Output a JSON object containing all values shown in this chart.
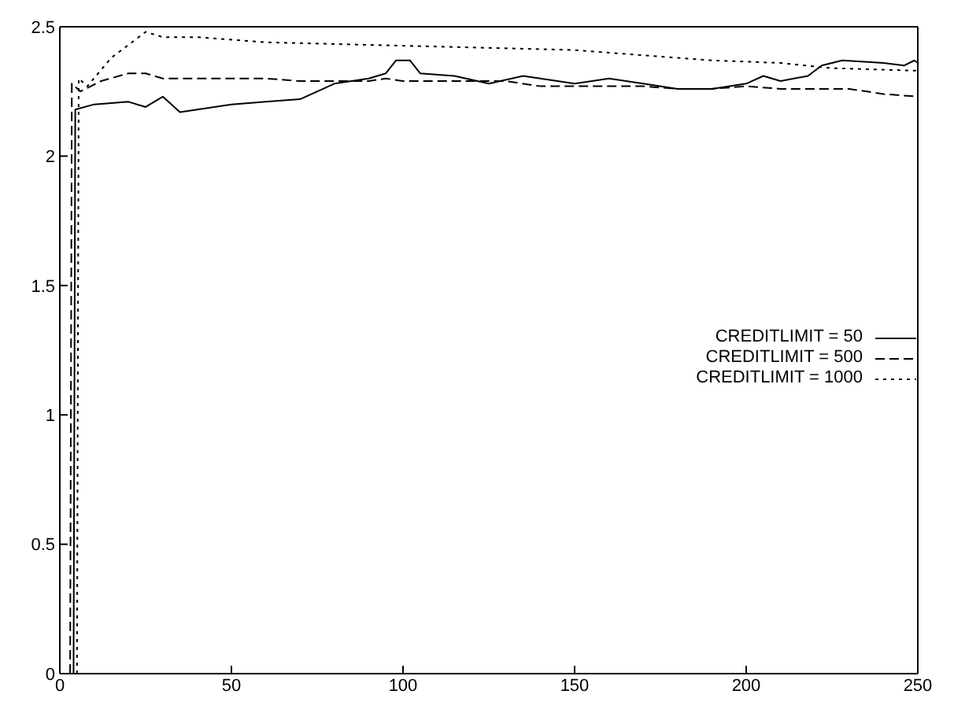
{
  "chart_data": {
    "type": "line",
    "xlim": [
      0,
      250
    ],
    "xticks": [
      0,
      50,
      100,
      150,
      200,
      250
    ],
    "ylim": [
      0,
      2.5
    ],
    "yticks": [
      0,
      0.5,
      1,
      1.5,
      2,
      2.5
    ],
    "grid": false,
    "legend": "right",
    "marker": "none",
    "series": [
      {
        "name": "CREDITLIMIT = 50",
        "color": "#000000",
        "line_style": "solid",
        "x": [
          4,
          4.5,
          10,
          20,
          25,
          30,
          35,
          40,
          50,
          60,
          70,
          80,
          90,
          95,
          98,
          102,
          105,
          115,
          125,
          135,
          140,
          150,
          160,
          170,
          180,
          190,
          200,
          205,
          210,
          218,
          222,
          228,
          240,
          246,
          249,
          250
        ],
        "values": [
          0,
          2.18,
          2.2,
          2.21,
          2.19,
          2.23,
          2.17,
          2.18,
          2.2,
          2.21,
          2.22,
          2.28,
          2.3,
          2.32,
          2.37,
          2.37,
          2.32,
          2.31,
          2.28,
          2.31,
          2.3,
          2.28,
          2.3,
          2.28,
          2.26,
          2.26,
          2.28,
          2.31,
          2.29,
          2.31,
          2.35,
          2.37,
          2.36,
          2.35,
          2.37,
          2.36
        ]
      },
      {
        "name": "CREDITLIMIT = 500",
        "color": "#000000",
        "line_style": "dashed",
        "x": [
          3,
          3.5,
          6,
          12,
          20,
          25,
          30,
          45,
          60,
          70,
          90,
          95,
          100,
          130,
          140,
          170,
          180,
          190,
          200,
          210,
          230,
          240,
          250
        ],
        "values": [
          0,
          2.28,
          2.25,
          2.29,
          2.32,
          2.32,
          2.3,
          2.3,
          2.3,
          2.29,
          2.29,
          2.3,
          2.29,
          2.29,
          2.27,
          2.27,
          2.26,
          2.26,
          2.27,
          2.26,
          2.26,
          2.24,
          2.23
        ]
      },
      {
        "name": "CREDITLIMIT = 1000",
        "color": "#000000",
        "line_style": "dotted",
        "x": [
          5,
          5.5,
          8,
          15,
          25,
          30,
          40,
          60,
          90,
          120,
          150,
          170,
          190,
          210,
          225,
          250
        ],
        "values": [
          0,
          2.3,
          2.27,
          2.38,
          2.48,
          2.46,
          2.46,
          2.44,
          2.43,
          2.42,
          2.41,
          2.39,
          2.37,
          2.36,
          2.34,
          2.33
        ]
      }
    ]
  }
}
